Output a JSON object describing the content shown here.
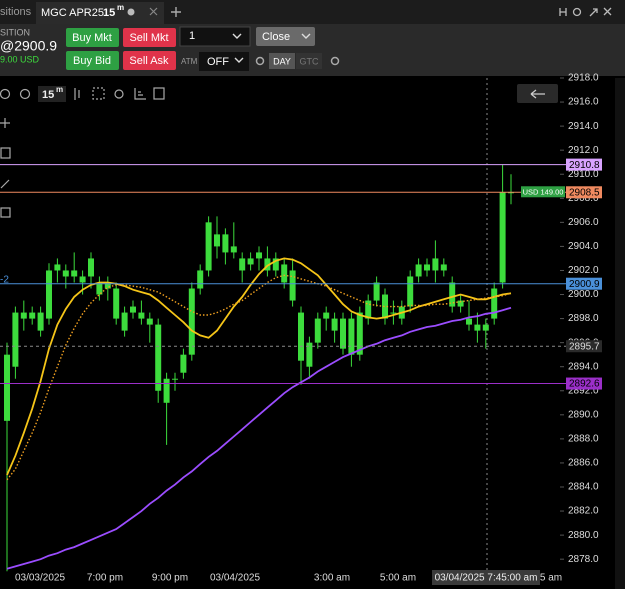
{
  "tabs": {
    "previous": "sitions",
    "active": "MGC APR25",
    "interval": "15",
    "interval_unit": "m"
  },
  "position": {
    "label": "SITION",
    "price": "@2900.9",
    "pnl": "9.00 USD"
  },
  "order_bar": {
    "buy_mkt": "Buy Mkt",
    "sell_mkt": "Sell Mkt",
    "quantity": "1",
    "close": "Close",
    "buy_bid": "Buy Bid",
    "sell_ask": "Sell Ask",
    "atm_label": "ATM",
    "atm_value": "OFF",
    "day": "DAY",
    "gtc": "GTC"
  },
  "chart_toolbar": {
    "interval": "15",
    "interval_unit": "m"
  },
  "side_label": "-2",
  "chart_data": {
    "type": "candlestick",
    "candle_color": "#3ddc3d",
    "candles": {
      "open": [
        2889.5,
        2894,
        2898,
        2898.5,
        2897,
        2898,
        2902,
        2901.5,
        2902,
        2901,
        2901.5,
        2900,
        2901,
        2898,
        2897,
        2899,
        2898.5,
        2898,
        2897.5,
        2891,
        2893,
        2893.5,
        2895,
        2900.5,
        2902,
        2905,
        2903.5,
        2904,
        2902,
        2902.5,
        2903,
        2902,
        2903,
        2901,
        2902,
        2898.5,
        2894,
        2896,
        2898,
        2897,
        2895.5,
        2895,
        2895,
        2898,
        2899.5,
        2898,
        2898.5,
        2898,
        2899,
        2901.5,
        2902,
        2902,
        2902,
        2901,
        2899,
        2898,
        2897.5,
        2897,
        2898,
        2901,
        2908.5
      ],
      "high": [
        2896,
        2899,
        2899.5,
        2899,
        2899,
        2902.6,
        2903,
        2902.5,
        2903.5,
        2902,
        2903.5,
        2901.5,
        2901.5,
        2901,
        2899,
        2899.5,
        2899.5,
        2898.5,
        2898,
        2893.5,
        2893.5,
        2895.5,
        2901,
        2902.5,
        2906.5,
        2906.5,
        2905.5,
        2906,
        2903.5,
        2903.5,
        2904,
        2904,
        2903.5,
        2903,
        2903,
        2899,
        2896.5,
        2898.5,
        2899,
        2898.5,
        2898.5,
        2898.5,
        2899,
        2900,
        2901.5,
        2900.5,
        2899.5,
        2899.5,
        2902,
        2903,
        2903,
        2904.5,
        2903,
        2901.5,
        2900,
        2899.5,
        2898.5,
        2898,
        2901,
        2910.8,
        2910
      ],
      "low": [
        2877,
        2893,
        2897,
        2897.5,
        2896.5,
        2897.5,
        2901,
        2900.5,
        2901,
        2900,
        2900.5,
        2899.5,
        2899.5,
        2897.5,
        2896.5,
        2898,
        2897.5,
        2896,
        2891,
        2887.5,
        2892,
        2893,
        2894.5,
        2900,
        2901.5,
        2903,
        2902.5,
        2903,
        2901,
        2902,
        2902,
        2901.5,
        2901.5,
        2900.5,
        2899,
        2892.5,
        2893,
        2895.5,
        2897,
        2896,
        2895,
        2894,
        2894.5,
        2897.5,
        2899,
        2897.5,
        2897.5,
        2897.5,
        2898.5,
        2901,
        2901.5,
        2901,
        2901.5,
        2898.5,
        2898.5,
        2897,
        2896,
        2895.5,
        2897.5,
        2900.5,
        2907.5
      ],
      "close": [
        2895,
        2898.5,
        2898.5,
        2898,
        2898.5,
        2902,
        2902.5,
        2902,
        2901.5,
        2901.5,
        2903,
        2901,
        2900.5,
        2900.5,
        2898.5,
        2898.5,
        2898,
        2897.5,
        2892,
        2893,
        2893,
        2895,
        2900.5,
        2902,
        2906,
        2904,
        2905,
        2903.5,
        2903,
        2903,
        2903.5,
        2903,
        2902,
        2902.5,
        2899.5,
        2894.5,
        2896,
        2898,
        2898.5,
        2898,
        2898,
        2898,
        2898.5,
        2899.5,
        2901,
        2900,
        2898.5,
        2899,
        2901.5,
        2902.5,
        2902.5,
        2903,
        2902.5,
        2899,
        2899.5,
        2897.5,
        2897,
        2897.5,
        2900.5,
        2908.5,
        2908.5
      ]
    },
    "series": [
      {
        "color": "#f5c518",
        "style": "solid",
        "values": [
          2885,
          2886.6,
          2888.5,
          2890.5,
          2892.8,
          2895.5,
          2897.5,
          2898.8,
          2899.8,
          2900.4,
          2900.8,
          2901,
          2901,
          2900.9,
          2900.7,
          2900.4,
          2900.2,
          2900,
          2899.5,
          2898.9,
          2898.3,
          2897.7,
          2897,
          2896.6,
          2896.4,
          2897,
          2898,
          2899,
          2899.8,
          2900.8,
          2901.7,
          2902.4,
          2902.8,
          2903,
          2902.9,
          2902.6,
          2902.1,
          2901.6,
          2900.8,
          2900,
          2899.2,
          2898.6,
          2898.3,
          2898.1,
          2898,
          2898.1,
          2898.3,
          2898.5,
          2898.7,
          2899,
          2899.2,
          2899.4,
          2899.6,
          2899.8,
          2900,
          2899.8,
          2899.6,
          2899.6,
          2899.8,
          2900,
          2900.1
        ]
      },
      {
        "color": "#f0a020",
        "style": "dotted",
        "values": [
          2884.6,
          2885.5,
          2887,
          2888.5,
          2890.2,
          2892.2,
          2894,
          2895.8,
          2897.2,
          2898.4,
          2899.3,
          2900,
          2900.6,
          2900.8,
          2900.8,
          2900.7,
          2900.6,
          2900.4,
          2900.2,
          2899.8,
          2899.4,
          2899,
          2898.6,
          2898.3,
          2898.3,
          2898.5,
          2898.8,
          2899.2,
          2899.5,
          2900,
          2900.5,
          2901,
          2901.4,
          2901.6,
          2901.5,
          2901.3,
          2901.1,
          2900.9,
          2900.7,
          2900.4,
          2900.1,
          2899.8,
          2899.5,
          2899.2,
          2899.1,
          2899,
          2899,
          2899,
          2899.1,
          2899.1,
          2899.1,
          2899.2,
          2899.2,
          2899.3,
          2899.4,
          2899.5,
          2899.6,
          2899.7,
          2899.8,
          2899.9,
          2900.1
        ]
      },
      {
        "color": "#9b4dff",
        "style": "solid",
        "values": [
          2877.2,
          2877.4,
          2877.6,
          2877.8,
          2878,
          2878.3,
          2878.5,
          2878.8,
          2879,
          2879.3,
          2879.6,
          2879.9,
          2880.2,
          2880.5,
          2881,
          2881.5,
          2882,
          2882.6,
          2883.1,
          2883.7,
          2884.2,
          2884.8,
          2885.3,
          2885.9,
          2886.5,
          2887,
          2887.6,
          2888.2,
          2888.8,
          2889.4,
          2890,
          2890.6,
          2891.2,
          2891.8,
          2892.3,
          2892.7,
          2893.1,
          2893.6,
          2894,
          2894.4,
          2894.8,
          2895.1,
          2895.4,
          2895.7,
          2895.9,
          2896.2,
          2896.4,
          2896.6,
          2896.9,
          2897.1,
          2897.3,
          2897.4,
          2897.6,
          2897.8,
          2897.9,
          2898.1,
          2898.2,
          2898.4,
          2898.5,
          2898.7,
          2898.9
        ]
      }
    ],
    "ylim": [
      2877.1,
      2918.0
    ],
    "yticks": [
      {
        "value": 2918,
        "label": "2918.0"
      },
      {
        "value": 2916,
        "label": "2916.0"
      },
      {
        "value": 2914,
        "label": "2914.0"
      },
      {
        "value": 2912,
        "label": "2912.0"
      },
      {
        "value": 2910,
        "label": "2910.0"
      },
      {
        "value": 2908,
        "label": "2908.0"
      },
      {
        "value": 2906,
        "label": "2906.0"
      },
      {
        "value": 2904,
        "label": "2904.0"
      },
      {
        "value": 2902,
        "label": "2902.0"
      },
      {
        "value": 2900,
        "label": "2900.0"
      },
      {
        "value": 2898,
        "label": "2898.0"
      },
      {
        "value": 2896,
        "label": "2896.0"
      },
      {
        "value": 2894,
        "label": "2894.0"
      },
      {
        "value": 2892,
        "label": "2892.0"
      },
      {
        "value": 2890,
        "label": "2890.0"
      },
      {
        "value": 2888,
        "label": "2888.0"
      },
      {
        "value": 2886,
        "label": "2886.0"
      },
      {
        "value": 2884,
        "label": "2884.0"
      },
      {
        "value": 2882,
        "label": "2882.0"
      },
      {
        "value": 2880,
        "label": "2880.0"
      },
      {
        "value": 2878,
        "label": "2878.0"
      }
    ],
    "price_lines": [
      {
        "value": 2910.8,
        "color": "#d9a3ff",
        "style": "solid"
      },
      {
        "value": 2908.5,
        "color": "#f08a60",
        "style": "solid"
      },
      {
        "value": 2900.9,
        "color": "#4a90d9",
        "style": "solid"
      },
      {
        "value": 2895.7,
        "color": "#8a8a8a",
        "style": "dashed"
      },
      {
        "value": 2892.6,
        "color": "#9b2fc9",
        "style": "solid"
      }
    ],
    "order_label": "USD 149.00",
    "x_labels": [
      "03/03/2025",
      "7:00 pm",
      "9:00 pm",
      "03/04/2025",
      "3:00 am",
      "5:00 am",
      "5 am"
    ],
    "crosshair_label": "03/04/2025 7:45:00 am"
  }
}
